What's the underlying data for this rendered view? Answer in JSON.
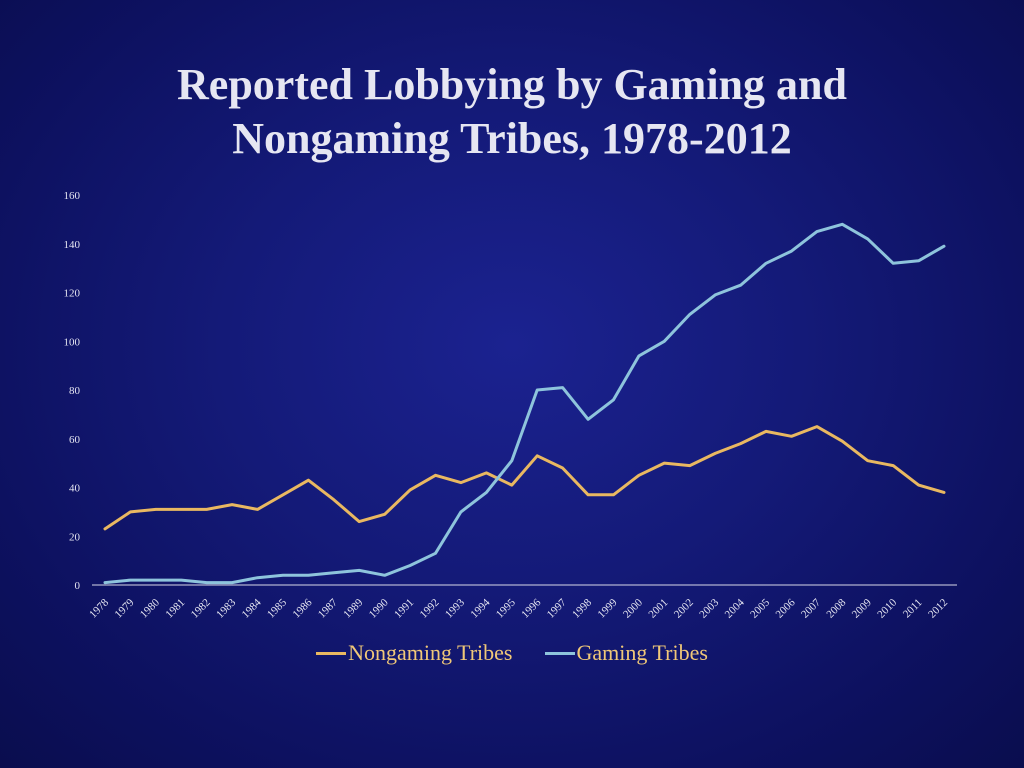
{
  "chart_data": {
    "type": "line",
    "title_line1": "Reported Lobbying by Gaming and",
    "title_line2": "Nongaming Tribes, 1978-2012",
    "xlabel": "",
    "ylabel": "",
    "ylim": [
      0,
      160
    ],
    "yticks": [
      0,
      20,
      40,
      60,
      80,
      100,
      120,
      140,
      160
    ],
    "grid": false,
    "legend_position": "bottom",
    "categories": [
      "1978",
      "1979",
      "1980",
      "1981",
      "1982",
      "1983",
      "1984",
      "1985",
      "1986",
      "1987",
      "1989",
      "1990",
      "1991",
      "1992",
      "1993",
      "1994",
      "1995",
      "1996",
      "1997",
      "1998",
      "1999",
      "2000",
      "2001",
      "2002",
      "2003",
      "2004",
      "2005",
      "2006",
      "2007",
      "2008",
      "2009",
      "2010",
      "2011",
      "2012"
    ],
    "series": [
      {
        "name": "Nongaming Tribes",
        "color": "#e9b861",
        "values": [
          23,
          30,
          31,
          31,
          31,
          33,
          31,
          37,
          43,
          35,
          26,
          29,
          39,
          45,
          42,
          46,
          41,
          53,
          48,
          37,
          37,
          45,
          50,
          49,
          54,
          58,
          63,
          61,
          65,
          59,
          51,
          49,
          41,
          38
        ]
      },
      {
        "name": "Gaming Tribes",
        "color": "#8ec4dc",
        "values": [
          1,
          2,
          2,
          2,
          1,
          1,
          3,
          4,
          4,
          5,
          6,
          4,
          8,
          13,
          30,
          38,
          51,
          80,
          81,
          68,
          76,
          94,
          100,
          111,
          119,
          123,
          132,
          137,
          145,
          148,
          142,
          132,
          133,
          139
        ]
      }
    ]
  }
}
